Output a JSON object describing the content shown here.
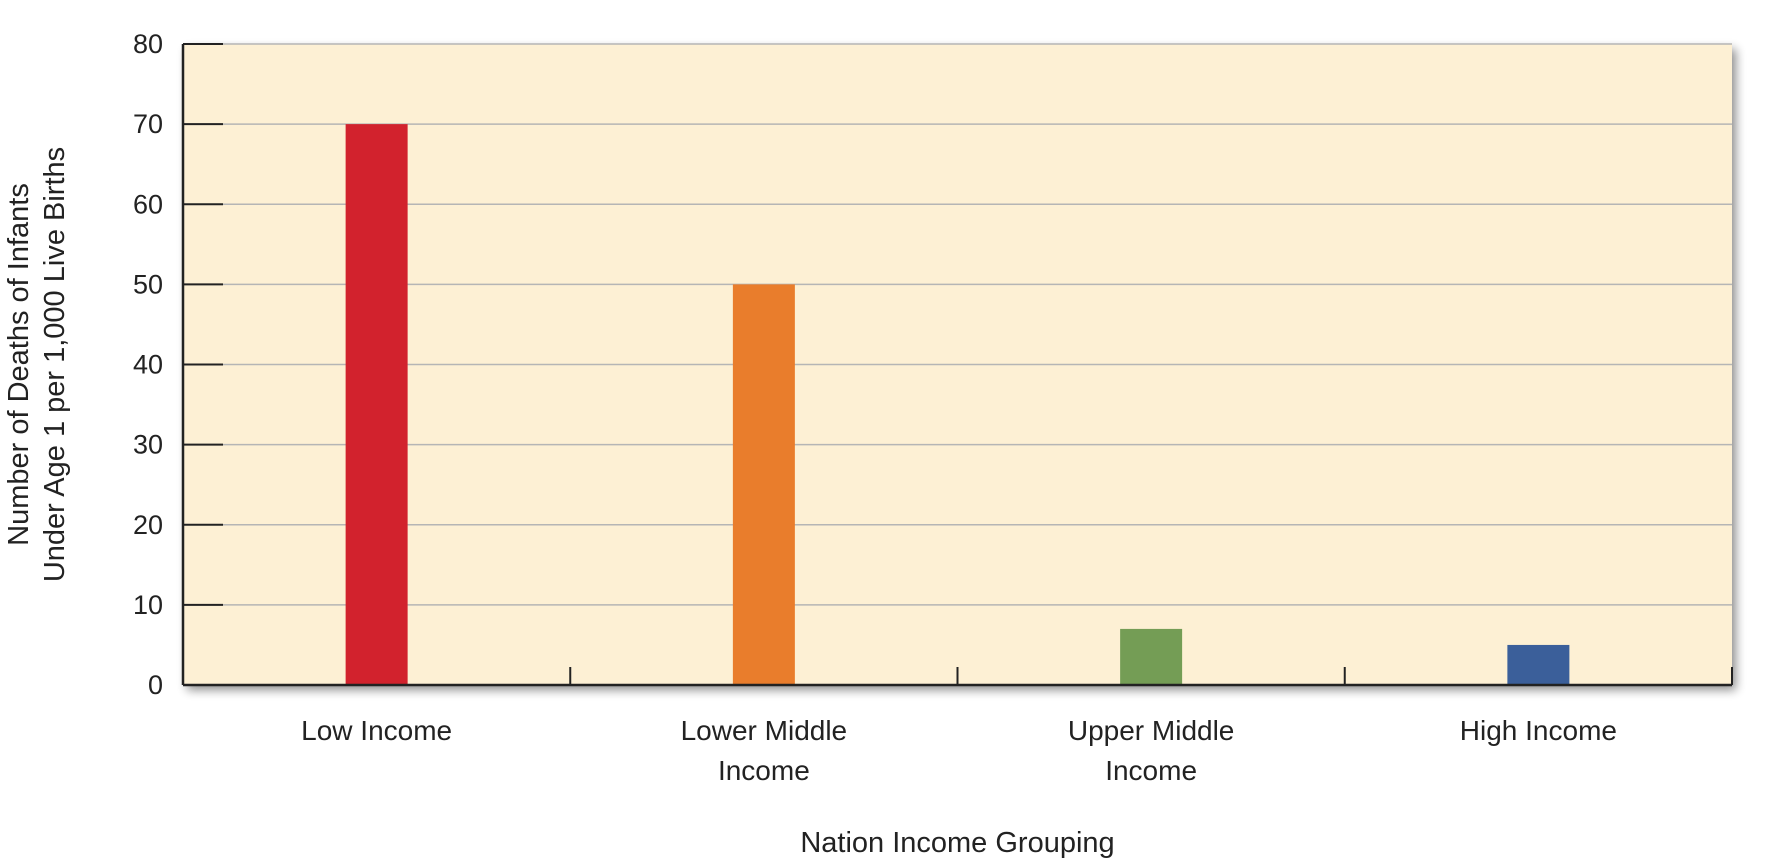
{
  "chart_data": {
    "type": "bar",
    "title": "",
    "xlabel": "Nation Income Grouping",
    "ylabel": [
      "Number of Deaths of Infants",
      "Under Age 1 per 1,000 Live Births"
    ],
    "categories": [
      [
        "Low Income"
      ],
      [
        "Lower Middle",
        "Income"
      ],
      [
        "Upper Middle",
        "Income"
      ],
      [
        "High Income"
      ]
    ],
    "values": [
      70,
      50,
      7,
      5
    ],
    "colors": [
      "#d2222d",
      "#e97d2c",
      "#749d55",
      "#3b5f9a"
    ],
    "ylim": [
      0,
      80
    ],
    "yticks": [
      0,
      10,
      20,
      30,
      40,
      50,
      60,
      70,
      80
    ],
    "grid": true,
    "legend": "none",
    "plot_background": "#fdf0d4",
    "gridline_color": "#b5b5b5"
  }
}
